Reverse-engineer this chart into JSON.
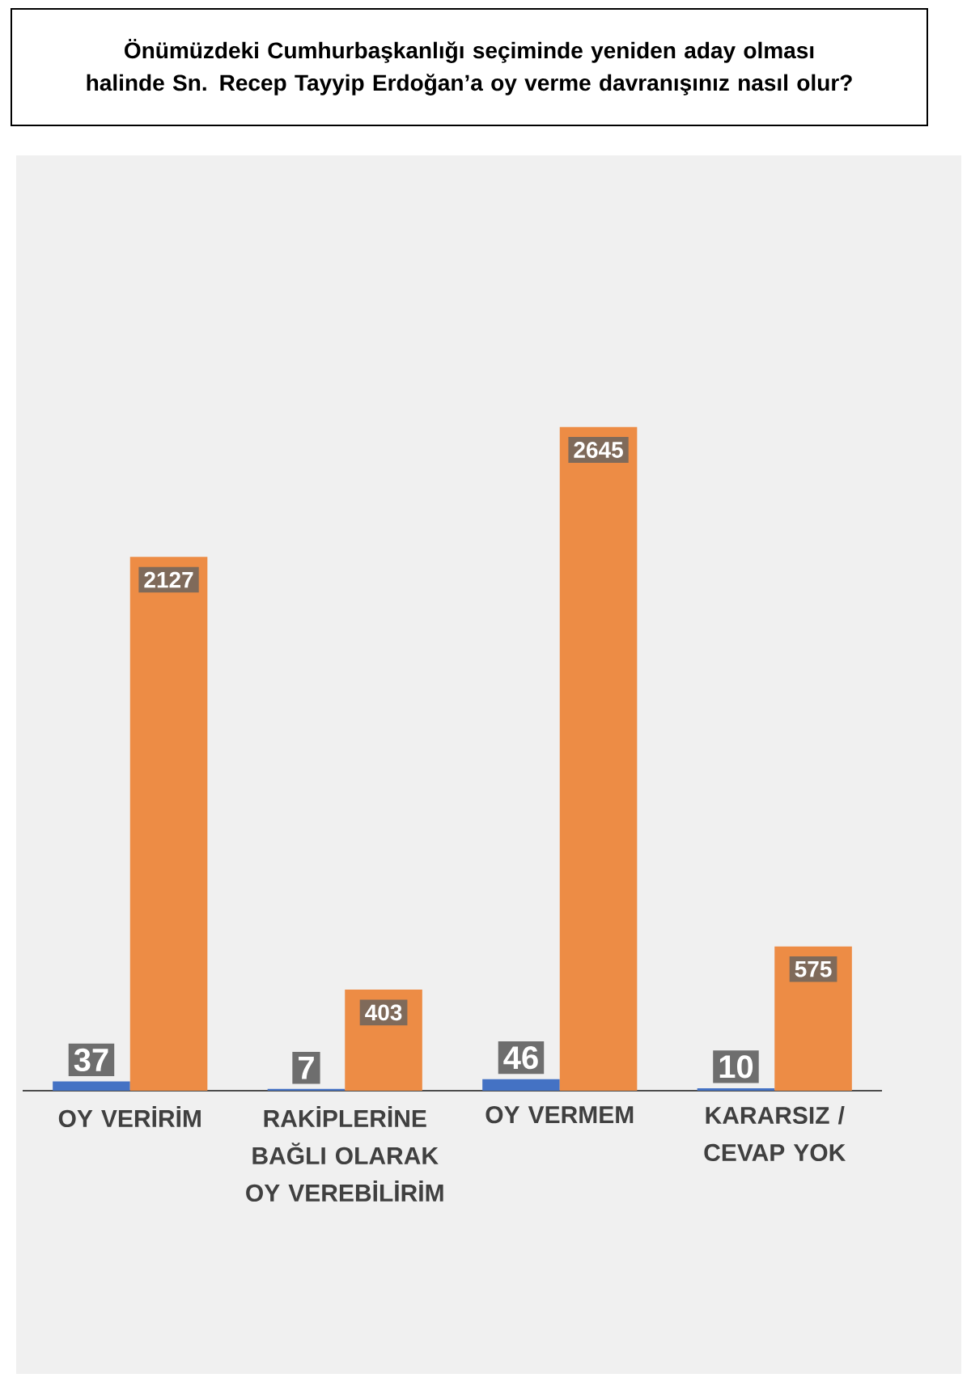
{
  "chart_data": {
    "type": "bar",
    "title": "Önümüzdeki Cumhurbaşkanlığı seçiminde yeniden aday olması halinde Sn. Recep Tayyip Erdoğan’a oy verme davranışınız nasıl olur?",
    "categories": [
      "OY VERİRİM",
      "RAKİPLERİNE BAĞLI OLARAK OY VEREBİLİRİM",
      "OY VERMEM",
      "KARARSIZ / CEVAP YOK"
    ],
    "series": [
      {
        "color": "#4472c4",
        "values": [
          37,
          7,
          46,
          10
        ]
      },
      {
        "color": "#ed8c45",
        "values": [
          2127,
          403,
          2645,
          575
        ]
      }
    ],
    "data_labels": true
  }
}
